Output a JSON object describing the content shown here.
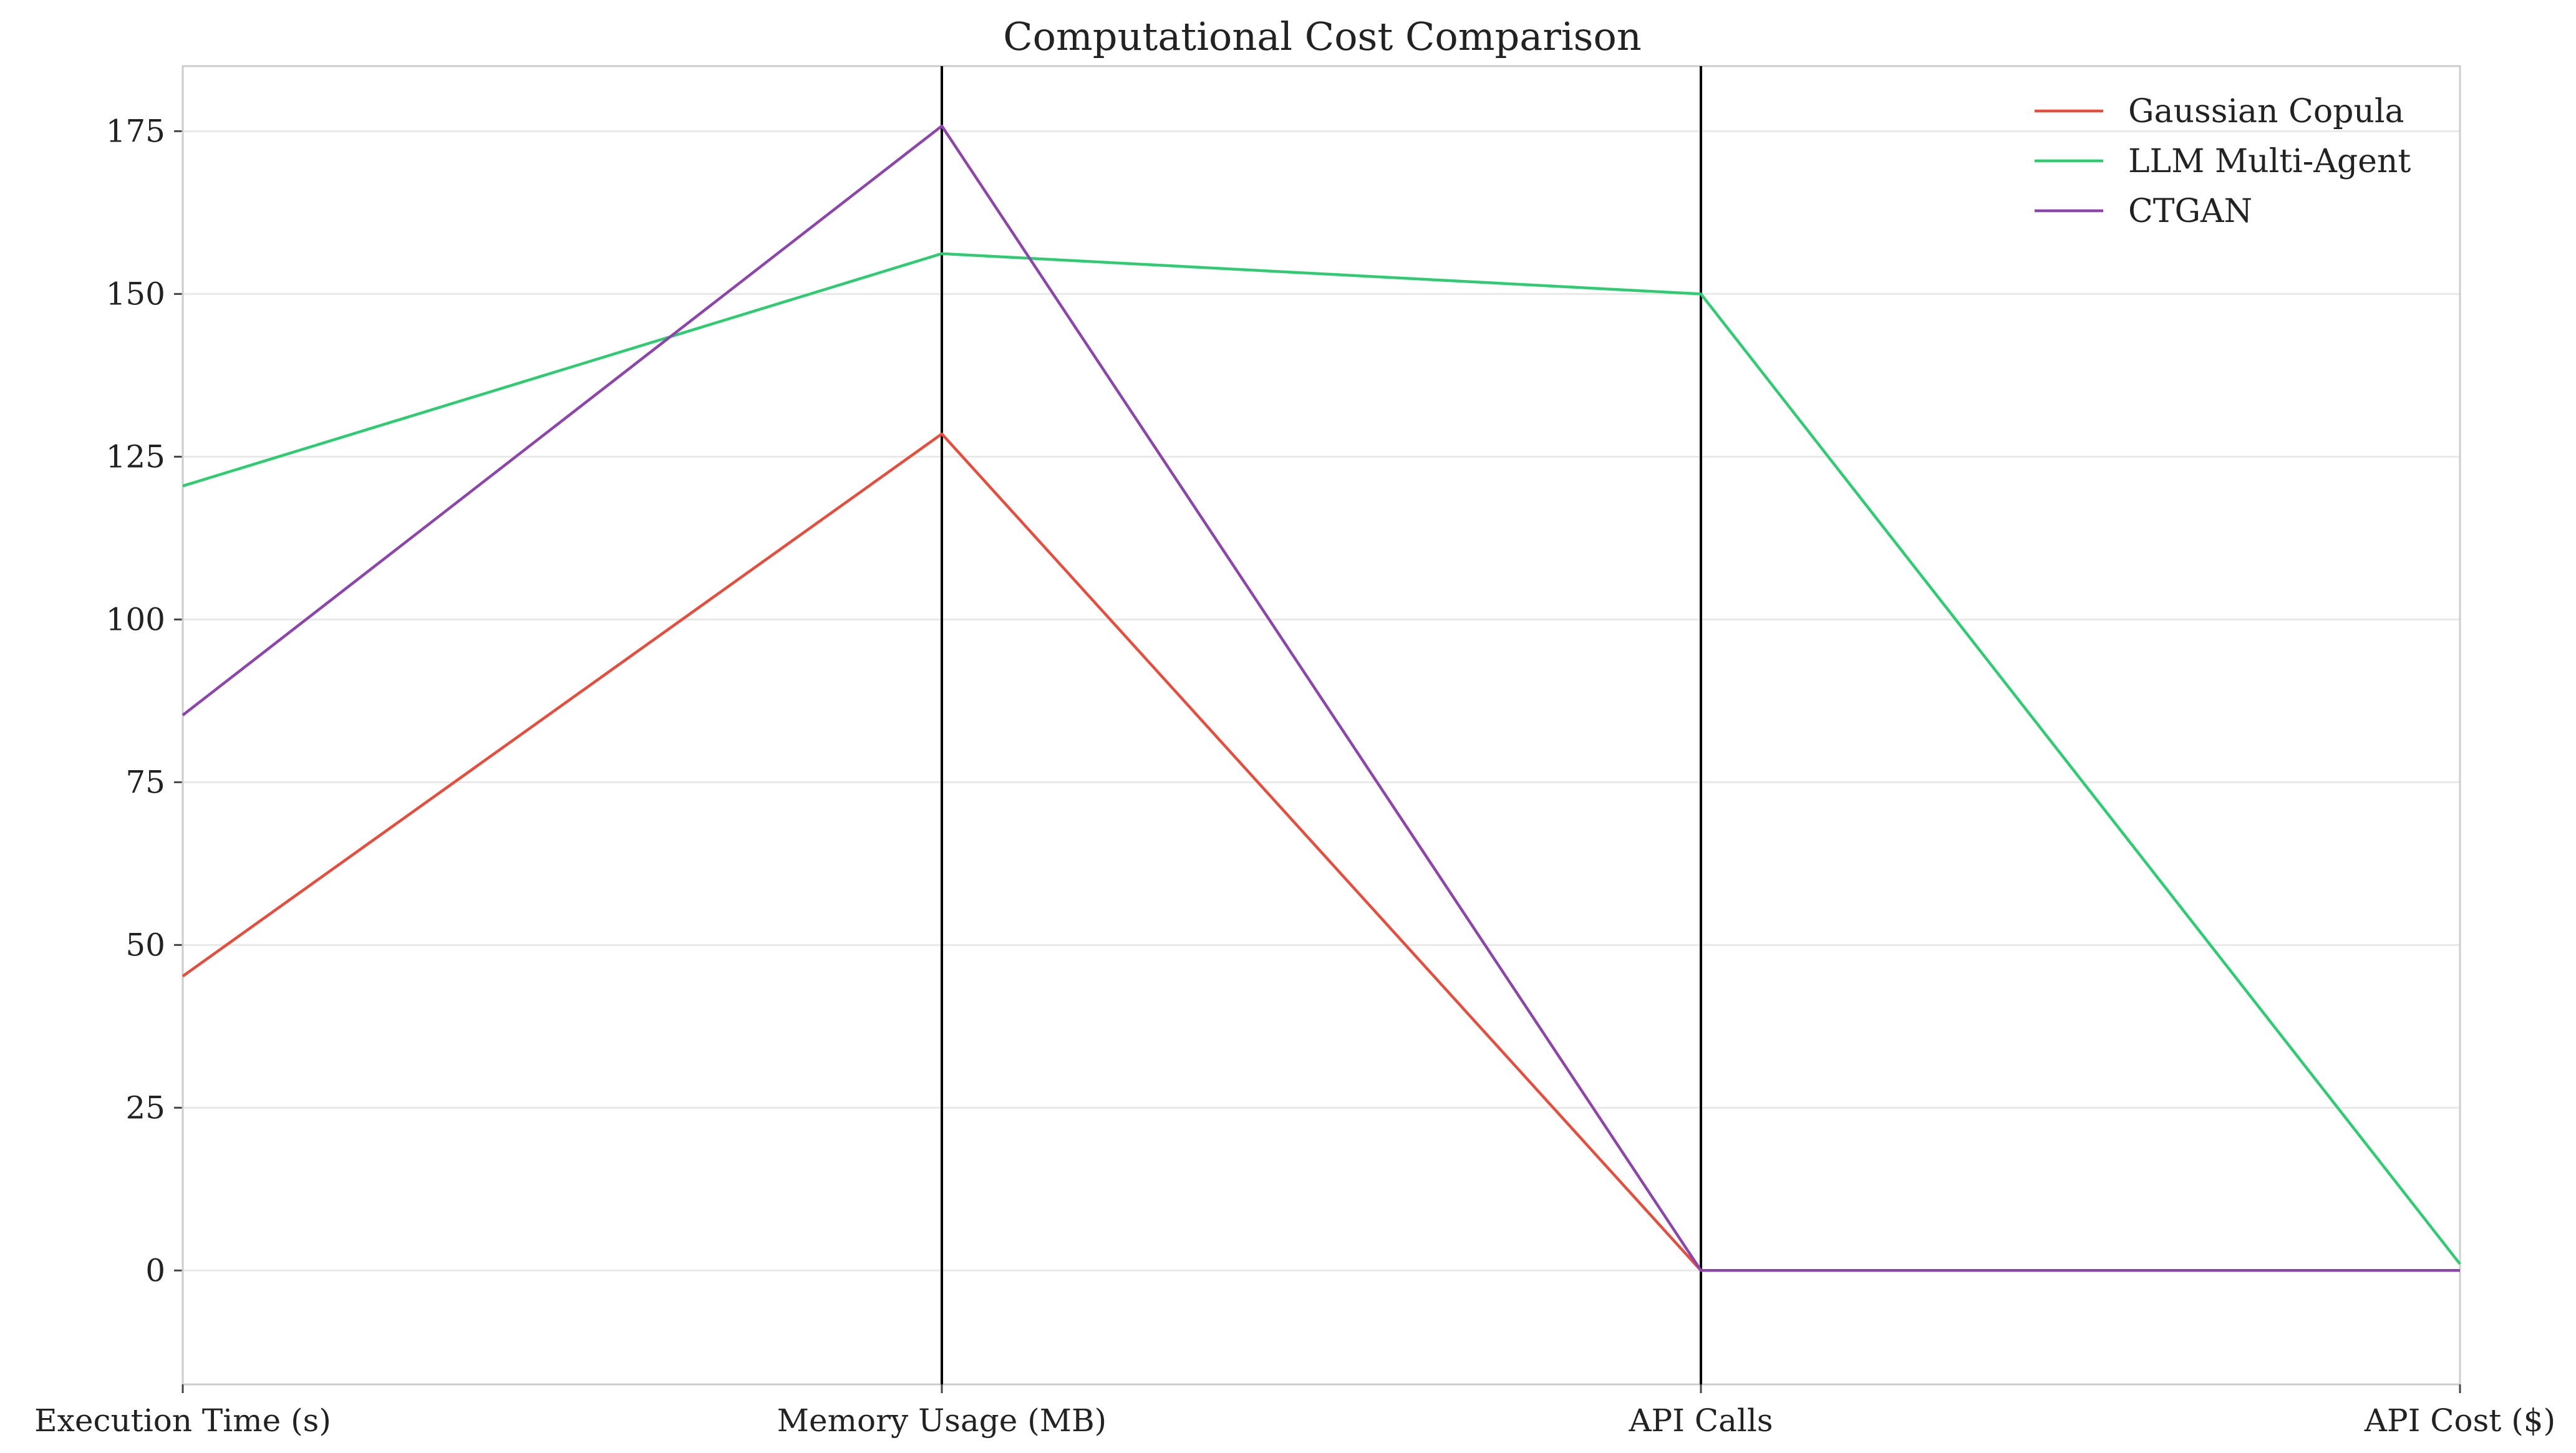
{
  "chart_data": {
    "type": "line",
    "title": "Computational Cost Comparison",
    "categories": [
      "Execution Time (s)",
      "Memory Usage (MB)",
      "API Calls",
      "API Cost ($)"
    ],
    "ylim": [
      -17.5,
      185
    ],
    "yticks": [
      0,
      25,
      50,
      75,
      100,
      125,
      150,
      175
    ],
    "grid": "horizontal",
    "legend_position": "top-right",
    "vertical_axis_lines": [
      "Memory Usage (MB)",
      "API Calls"
    ],
    "series": [
      {
        "name": "Gaussian Copula",
        "color": "#e74c3c",
        "values": [
          45.2,
          128.5,
          0,
          0
        ]
      },
      {
        "name": "LLM Multi-Agent",
        "color": "#2ecc71",
        "values": [
          120.5,
          156.2,
          150,
          1.0
        ]
      },
      {
        "name": "CTGAN",
        "color": "#8e44ad",
        "values": [
          85.3,
          175.8,
          0,
          0
        ]
      }
    ]
  }
}
